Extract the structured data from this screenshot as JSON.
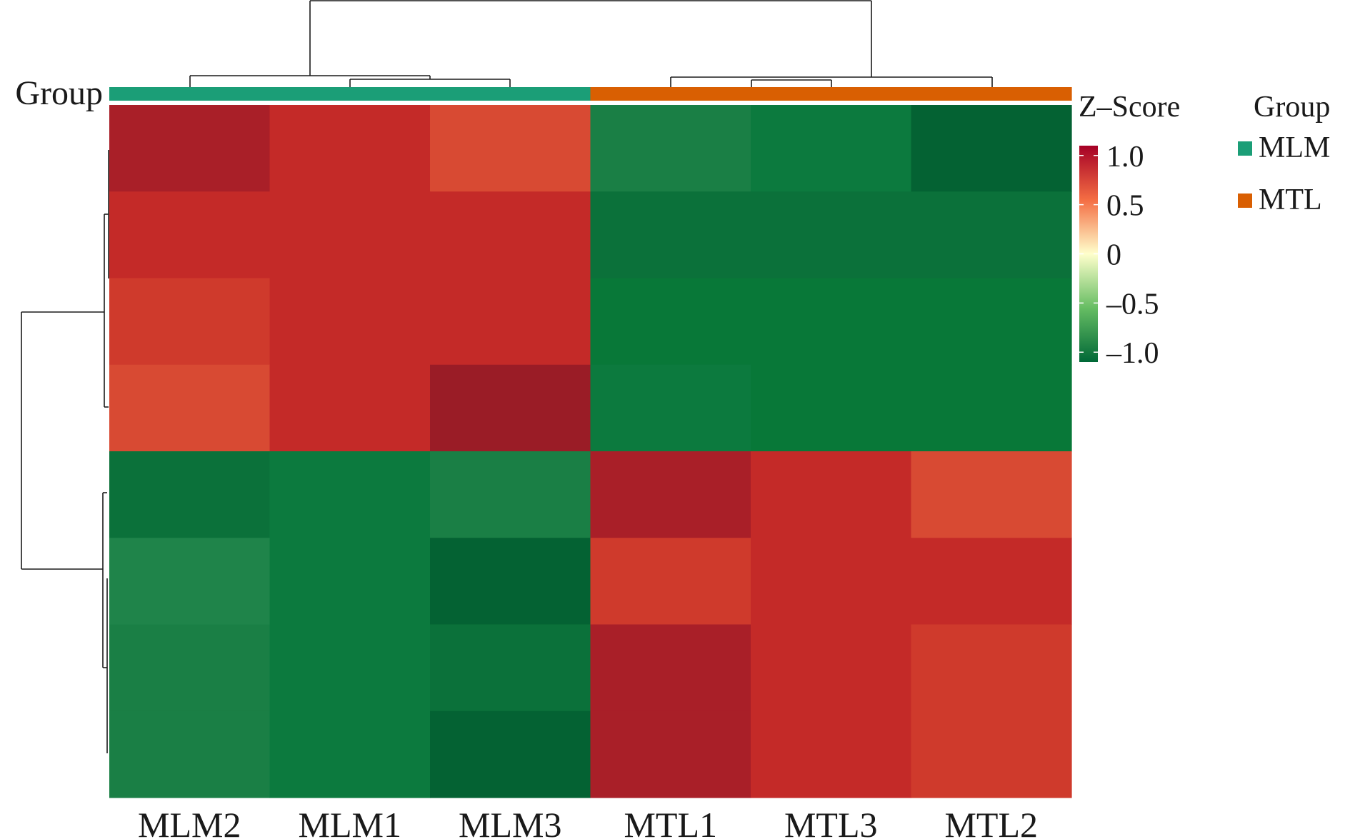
{
  "chart_data": {
    "type": "heatmap",
    "title": "",
    "xlabel": "",
    "ylabel": "",
    "columns": [
      "MLM2",
      "MLM1",
      "MLM3",
      "MTL1",
      "MTL3",
      "MTL2"
    ],
    "column_groups": [
      "MLM",
      "MLM",
      "MLM",
      "MTL",
      "MTL",
      "MTL"
    ],
    "rows": 8,
    "values": [
      [
        1.0,
        0.85,
        0.55,
        -0.75,
        -0.85,
        -1.0
      ],
      [
        0.85,
        0.85,
        0.85,
        -0.9,
        -0.9,
        -0.9
      ],
      [
        0.75,
        0.85,
        0.9,
        -0.95,
        -0.95,
        -0.95
      ],
      [
        0.55,
        0.85,
        1.15,
        -0.85,
        -0.95,
        -0.95
      ],
      [
        -0.9,
        -0.85,
        -0.75,
        1.0,
        0.85,
        0.6
      ],
      [
        -0.7,
        -0.85,
        -1.0,
        0.7,
        0.85,
        0.9
      ],
      [
        -0.75,
        -0.85,
        -0.9,
        1.0,
        0.85,
        0.75
      ],
      [
        -0.75,
        -0.85,
        -1.0,
        1.0,
        0.85,
        0.75
      ]
    ],
    "colorbar": {
      "title": "Z–Score",
      "ticks": [
        "1.0",
        "0.5",
        "0",
        "–0.5",
        "–1.0"
      ],
      "tick_values": [
        1.0,
        0.5,
        0,
        -0.5,
        -1.0
      ],
      "range": [
        -1.1,
        1.1
      ],
      "low_color": "#006837",
      "mid_color": "#ffffcc",
      "high_color": "#a50026"
    },
    "annotation": {
      "label": "Group",
      "legend_title": "Group",
      "groups": [
        {
          "name": "MLM",
          "color": "#1b9e77"
        },
        {
          "name": "MTL",
          "color": "#d95f02"
        }
      ]
    },
    "dendrograms": {
      "rows": true,
      "columns": true
    }
  }
}
